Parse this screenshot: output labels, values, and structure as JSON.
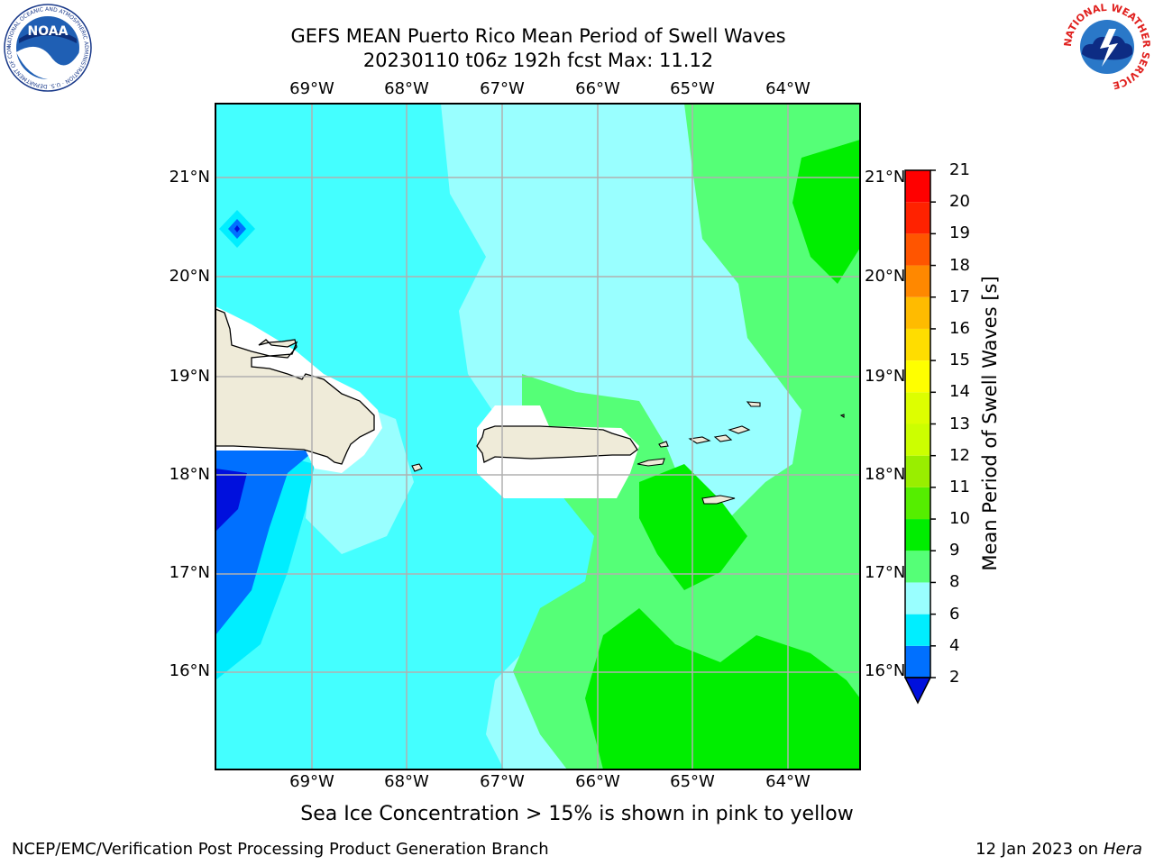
{
  "header": {
    "title_line1": "GEFS MEAN Puerto Rico Mean Period of Swell Waves",
    "title_line2": "20230110 t06z 192h fcst   Max: 11.12"
  },
  "map": {
    "lon_labels": [
      "69°W",
      "68°W",
      "67°W",
      "66°W",
      "65°W",
      "64°W"
    ],
    "lat_labels": [
      "21°N",
      "20°N",
      "19°N",
      "18°N",
      "17°N",
      "16°N"
    ]
  },
  "colorbar": {
    "title": "Mean Period of Swell Waves [s]",
    "ticks": [
      "2",
      "4",
      "6",
      "8",
      "9",
      "10",
      "11",
      "12",
      "13",
      "14",
      "15",
      "16",
      "17",
      "18",
      "19",
      "20",
      "21"
    ],
    "colors": [
      "#0070ff",
      "#00eeff",
      "#44ffff",
      "#99ffff",
      "#55ff77",
      "#00ee00",
      "#55ee00",
      "#99ee00",
      "#ccff00",
      "#ddff00",
      "#ffff00",
      "#ffdd00",
      "#ffbb00",
      "#ff8800",
      "#ff5500",
      "#ff2200",
      "#ff0000"
    ]
  },
  "footer": {
    "subtitle": "Sea Ice Concentration > 15% is shown in pink to yellow",
    "left": "NCEP/EMC/Verification Post Processing Product Generation Branch",
    "right_date": "12 Jan 2023 on",
    "right_host": "Hera"
  },
  "logos": {
    "noaa_text": "NOAA",
    "noaa_ring": "NATIONAL OCEANIC AND ATMOSPHERIC ADMINISTRATION · U.S. DEPARTMENT OF COMMERCE",
    "nws_ring": "NATIONAL WEATHER SERVICE"
  }
}
